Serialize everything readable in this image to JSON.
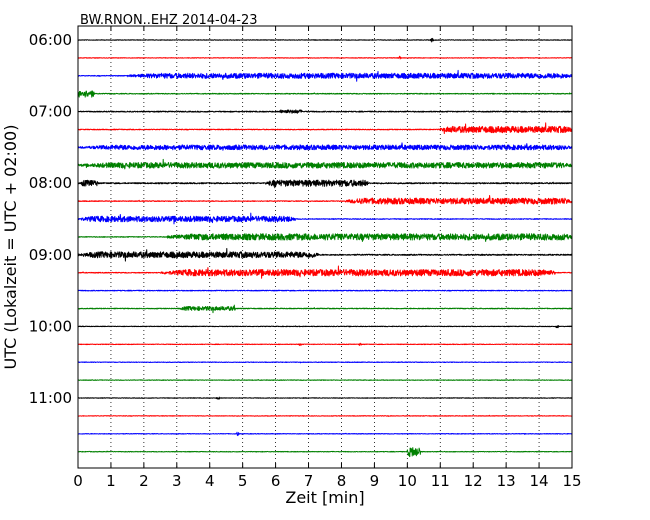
{
  "chart_data": {
    "type": "line",
    "title": "BW.RNON..EHZ 2014-04-23",
    "xlabel": "Zeit  [min]",
    "ylabel": "UTC (Lokalzeit = UTC + 02:00)",
    "xlim": [
      0,
      15
    ],
    "x_ticks": [
      "0",
      "1",
      "2",
      "3",
      "4",
      "5",
      "6",
      "7",
      "8",
      "9",
      "10",
      "11",
      "12",
      "13",
      "14",
      "15"
    ],
    "y_ticks": [
      "06:00",
      "07:00",
      "08:00",
      "09:00",
      "10:00",
      "11:00"
    ],
    "row_interval_min": 15,
    "grid": "vertical dotted",
    "series_colors": [
      "#000000",
      "#ff0000",
      "#0000ff",
      "#008000"
    ],
    "traces": [
      {
        "time": "06:00",
        "color": "#000000",
        "base": 0.3,
        "bursts": [
          [
            10.7,
            10.8,
            2
          ]
        ]
      },
      {
        "time": "06:15",
        "color": "#ff0000",
        "base": 0.3,
        "bursts": [
          [
            9.7,
            9.8,
            2
          ]
        ]
      },
      {
        "time": "06:30",
        "color": "#0000ff",
        "base": 0.4,
        "bursts": [
          [
            1.5,
            15,
            2.6
          ]
        ]
      },
      {
        "time": "06:45",
        "color": "#008000",
        "base": 0.4,
        "bursts": [
          [
            0,
            0.5,
            3.5
          ]
        ]
      },
      {
        "time": "07:00",
        "color": "#000000",
        "base": 0.5,
        "bursts": [
          [
            6.1,
            6.8,
            1.8
          ]
        ]
      },
      {
        "time": "07:15",
        "color": "#ff0000",
        "base": 0.4,
        "bursts": [
          [
            11,
            15,
            3.2
          ]
        ]
      },
      {
        "time": "07:30",
        "color": "#0000ff",
        "base": 0.4,
        "bursts": [
          [
            0,
            15,
            2.4
          ]
        ]
      },
      {
        "time": "07:45",
        "color": "#008000",
        "base": 0.4,
        "bursts": [
          [
            0,
            15,
            2.8
          ]
        ]
      },
      {
        "time": "08:00",
        "color": "#000000",
        "base": 0.6,
        "bursts": [
          [
            0.1,
            0.6,
            3
          ],
          [
            5.7,
            8.8,
            3.2
          ]
        ]
      },
      {
        "time": "08:15",
        "color": "#ff0000",
        "base": 0.4,
        "bursts": [
          [
            8.1,
            15,
            3
          ]
        ]
      },
      {
        "time": "08:30",
        "color": "#0000ff",
        "base": 0.4,
        "bursts": [
          [
            0,
            6.6,
            2.8
          ]
        ]
      },
      {
        "time": "08:45",
        "color": "#008000",
        "base": 0.4,
        "bursts": [
          [
            2.7,
            15,
            3.2
          ]
        ]
      },
      {
        "time": "09:00",
        "color": "#000000",
        "base": 0.6,
        "bursts": [
          [
            0,
            7.3,
            3
          ]
        ]
      },
      {
        "time": "09:15",
        "color": "#ff0000",
        "base": 0.4,
        "bursts": [
          [
            2.5,
            14.5,
            3.2
          ]
        ]
      },
      {
        "time": "09:30",
        "color": "#0000ff",
        "base": 0.4,
        "bursts": []
      },
      {
        "time": "09:45",
        "color": "#008000",
        "base": 0.4,
        "bursts": [
          [
            3.1,
            4.8,
            2
          ]
        ]
      },
      {
        "time": "10:00",
        "color": "#000000",
        "base": 0.3,
        "bursts": [
          [
            14.5,
            14.6,
            1.5
          ]
        ]
      },
      {
        "time": "10:15",
        "color": "#ff0000",
        "base": 0.3,
        "bursts": [
          [
            6.7,
            6.8,
            1.5
          ],
          [
            8.5,
            8.6,
            1.5
          ]
        ]
      },
      {
        "time": "10:30",
        "color": "#0000ff",
        "base": 0.3,
        "bursts": []
      },
      {
        "time": "10:45",
        "color": "#008000",
        "base": 0.3,
        "bursts": []
      },
      {
        "time": "11:00",
        "color": "#000000",
        "base": 0.3,
        "bursts": [
          [
            4.2,
            4.3,
            1.5
          ]
        ]
      },
      {
        "time": "11:15",
        "color": "#ff0000",
        "base": 0.3,
        "bursts": []
      },
      {
        "time": "11:30",
        "color": "#0000ff",
        "base": 0.3,
        "bursts": [
          [
            4.8,
            4.9,
            2
          ]
        ]
      },
      {
        "time": "11:45",
        "color": "#008000",
        "base": 0.3,
        "bursts": [
          [
            10,
            10.4,
            5
          ]
        ]
      }
    ]
  }
}
